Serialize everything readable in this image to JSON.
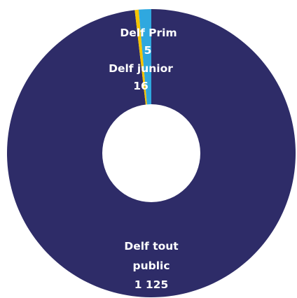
{
  "chart_data": {
    "type": "pie",
    "variant": "donut",
    "slices": [
      {
        "label": "Delf tout public",
        "value": 1125,
        "value_label": "1 125",
        "color": "#2e2c68"
      },
      {
        "label": "Delf Prim",
        "value": 5,
        "value_label": "5",
        "color": "#f5c400"
      },
      {
        "label": "Delf junior",
        "value": 16,
        "value_label": "16",
        "color": "#2fa8df"
      }
    ],
    "title": "",
    "legend": "none"
  }
}
